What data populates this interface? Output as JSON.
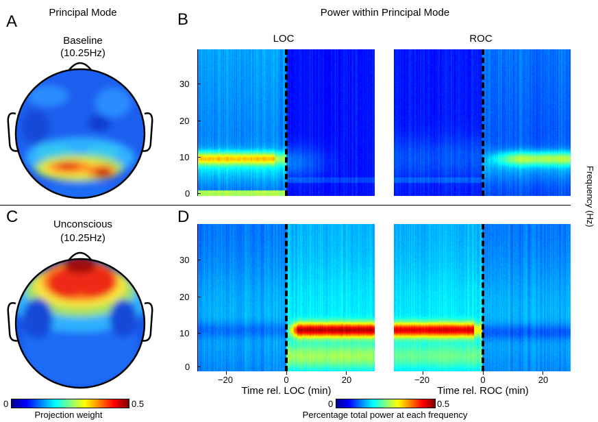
{
  "panels": {
    "A": {
      "letter": "A",
      "title": "Principal Mode",
      "label": "Baseline",
      "freq": "(10.25Hz)"
    },
    "B": {
      "letter": "B",
      "title": "Power within Principal Mode",
      "sub_left": "LOC",
      "sub_right": "ROC"
    },
    "C": {
      "letter": "C",
      "label": "Unconscious",
      "freq": "(10.25Hz)"
    },
    "D": {
      "letter": "D",
      "xlabel_left": "Time rel. LOC (min)",
      "xlabel_right": "Time rel. ROC (min)"
    }
  },
  "yaxis_label": "Frequency (Hz)",
  "colorbar_left": {
    "min": "0",
    "max": "0.5",
    "label": "Projection weight"
  },
  "colorbar_right": {
    "min": "0",
    "max": "0.5",
    "label": "Percentage total power at each frequency"
  },
  "chart_data": [
    {
      "type": "heatmap",
      "panel": "B",
      "event": "LOC",
      "y_ticks": [
        "0",
        "10",
        "20",
        "30"
      ],
      "ylim": [
        0,
        39
      ],
      "xlim": [
        -30,
        30
      ],
      "alpha_band_hz": 10,
      "alpha_power": "moderate before event, absent after"
    },
    {
      "type": "heatmap",
      "panel": "B",
      "event": "ROC",
      "y_ticks": [
        "0",
        "10",
        "20",
        "30"
      ],
      "ylim": [
        0,
        39
      ],
      "xlim": [
        -30,
        30
      ],
      "alpha_band_hz": 10,
      "alpha_power": "absent before event, moderate after"
    },
    {
      "type": "heatmap",
      "panel": "D",
      "event": "LOC",
      "x_ticks": [
        "−20",
        "0",
        "20"
      ],
      "y_ticks": [
        "0",
        "10",
        "20",
        "30"
      ],
      "ylim": [
        0,
        39
      ],
      "xlim": [
        -30,
        30
      ],
      "alpha_band_hz": 11,
      "alpha_power": "low before event, high after"
    },
    {
      "type": "heatmap",
      "panel": "D",
      "event": "ROC",
      "x_ticks": [
        "−20",
        "0",
        "20"
      ],
      "y_ticks": [
        "0",
        "10",
        "20",
        "30"
      ],
      "ylim": [
        0,
        39
      ],
      "xlim": [
        -30,
        30
      ],
      "alpha_band_hz": 11,
      "alpha_power": "high before event, low after"
    }
  ]
}
